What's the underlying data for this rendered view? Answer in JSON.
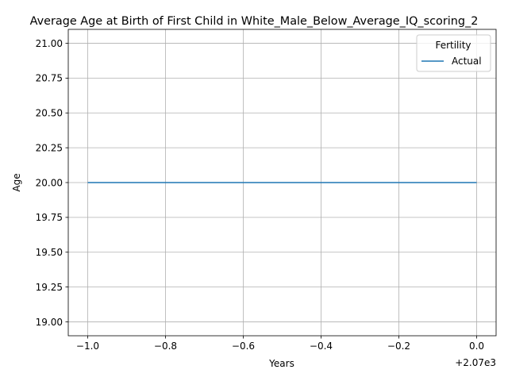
{
  "chart_data": {
    "type": "line",
    "title": "Average Age at Birth of First Child in White_Male_Below_Average_IQ_scoring_2",
    "xlabel": "Years",
    "ylabel": "Age",
    "x_offset_label": "+2.07e3",
    "xlim": [
      2068.95,
      2070.05
    ],
    "ylim": [
      18.9,
      21.1
    ],
    "x_ticks": [
      {
        "value": 2069.0,
        "label": "−1.0"
      },
      {
        "value": 2069.2,
        "label": "−0.8"
      },
      {
        "value": 2069.4,
        "label": "−0.6"
      },
      {
        "value": 2069.6,
        "label": "−0.4"
      },
      {
        "value": 2069.8,
        "label": "−0.2"
      },
      {
        "value": 2070.0,
        "label": "0.0"
      }
    ],
    "y_ticks": [
      {
        "value": 19.0,
        "label": "19.00"
      },
      {
        "value": 19.25,
        "label": "19.25"
      },
      {
        "value": 19.5,
        "label": "19.50"
      },
      {
        "value": 19.75,
        "label": "19.75"
      },
      {
        "value": 20.0,
        "label": "20.00"
      },
      {
        "value": 20.25,
        "label": "20.25"
      },
      {
        "value": 20.5,
        "label": "20.50"
      },
      {
        "value": 20.75,
        "label": "20.75"
      },
      {
        "value": 21.0,
        "label": "21.00"
      }
    ],
    "grid": true,
    "legend": {
      "title": "Fertility",
      "placement": "top-right"
    },
    "series": [
      {
        "name": "Actual",
        "color": "#1f77b4",
        "x": [
          2069,
          2070
        ],
        "y": [
          20.0,
          20.0
        ]
      }
    ]
  }
}
